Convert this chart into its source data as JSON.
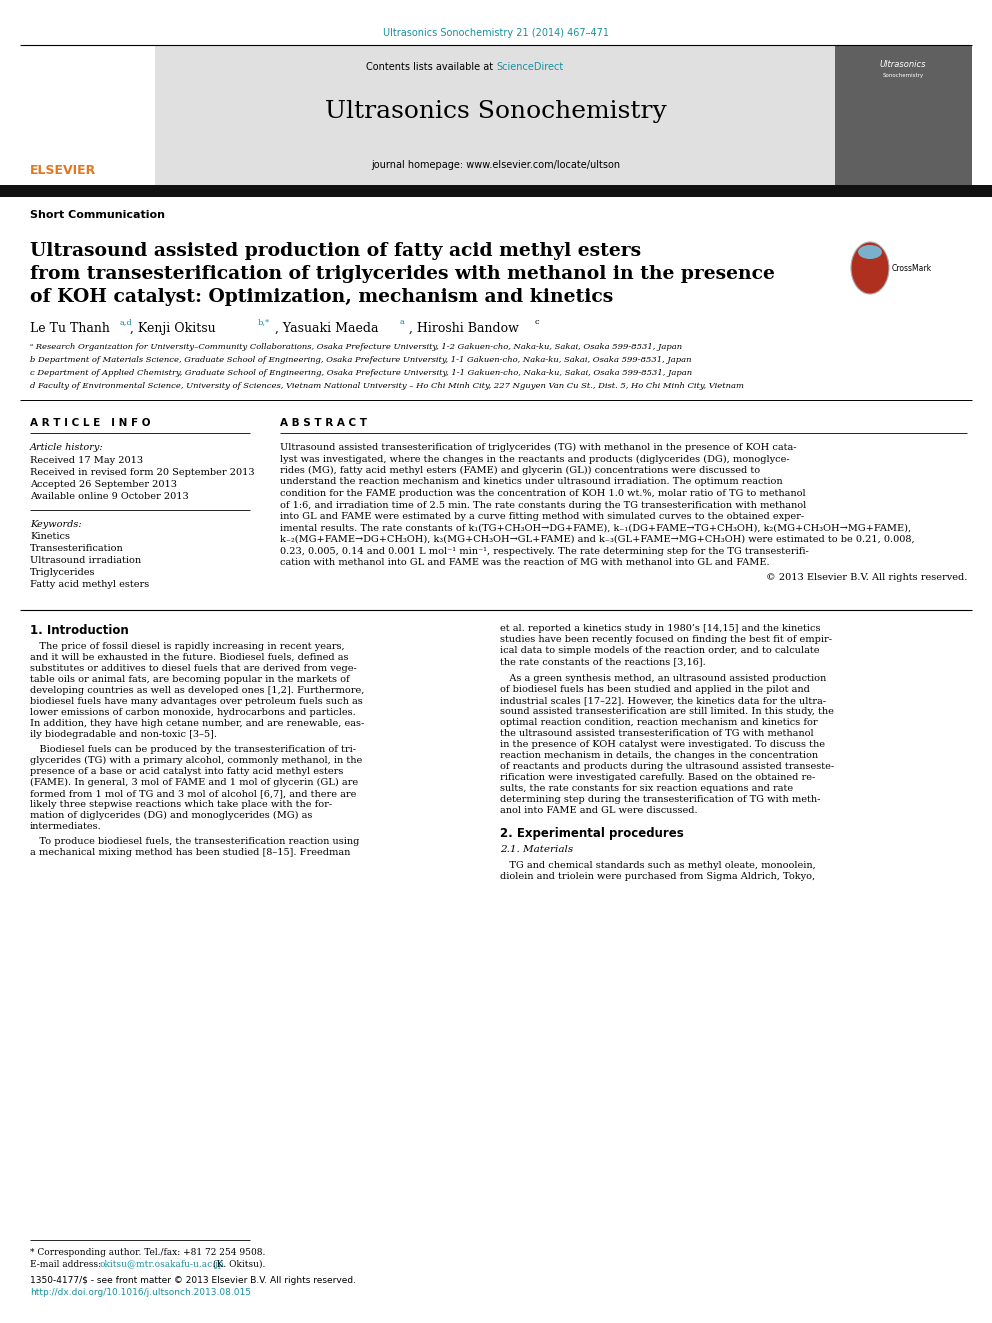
{
  "page_width": 9.92,
  "page_height": 13.23,
  "dpi": 100,
  "bg": "#ffffff",
  "teal": "#1a8fa0",
  "orange": "#e07820",
  "gray_header": "#e0e0e0",
  "dark_gray_logo": "#606060",
  "top_ref": "Ultrasonics Sonochemistry 21 (2014) 467–471",
  "contents_pre": "Contents lists available at ",
  "sciencedirect": "ScienceDirect",
  "journal_title": "Ultrasonics Sonochemistry",
  "journal_url": "journal homepage: www.elsevier.com/locate/ultson",
  "short_comm": "Short Communication",
  "title1": "Ultrasound assisted production of fatty acid methyl esters",
  "title2": "from transesterification of triglycerides with methanol in the presence",
  "title3": "of KOH catalyst: Optimization, mechanism and kinetics",
  "auth1": "Le Tu Thanh ",
  "auth1_sup": "a,d",
  "auth2": ", Kenji Okitsu ",
  "auth2_sup": "b,*",
  "auth3": ", Yasuaki Maeda ",
  "auth3_sup": "a",
  "auth4": ", Hiroshi Bandow ",
  "auth4_sup": "c",
  "aff_a": "ᵃ Research Organization for University–Community Collaborations, Osaka Prefecture University, 1-2 Gakuen-cho, Naka-ku, Sakai, Osaka 599-8531, Japan",
  "aff_b": "b Department of Materials Science, Graduate School of Engineering, Osaka Prefecture University, 1-1 Gakuen-cho, Naka-ku, Sakai, Osaka 599-8531, Japan",
  "aff_c": "c Department of Applied Chemistry, Graduate School of Engineering, Osaka Prefecture University, 1-1 Gakuen-cho, Naka-ku, Sakai, Osaka 599-8531, Japan",
  "aff_d": "d Faculty of Environmental Science, University of Sciences, Vietnam National University – Ho Chi Minh City, 227 Nguyen Van Cu St., Dist. 5, Ho Chi Minh City, Vietnam",
  "ai_header": "A R T I C L E   I N F O",
  "abs_header": "A B S T R A C T",
  "hist_label": "Article history:",
  "received": "Received 17 May 2013",
  "revised": "Received in revised form 20 September 2013",
  "accepted": "Accepted 26 September 2013",
  "available": "Available online 9 October 2013",
  "kw_label": "Keywords:",
  "kw1": "Kinetics",
  "kw2": "Transesterification",
  "kw3": "Ultrasound irradiation",
  "kw4": "Triglycerides",
  "kw5": "Fatty acid methyl esters",
  "abstract_lines": [
    "Ultrasound assisted transesterification of triglycerides (TG) with methanol in the presence of KOH cata-",
    "lyst was investigated, where the changes in the reactants and products (diglycerides (DG), monoglyce-",
    "rides (MG), fatty acid methyl esters (FAME) and glycerin (GL)) concentrations were discussed to",
    "understand the reaction mechanism and kinetics under ultrasound irradiation. The optimum reaction",
    "condition for the FAME production was the concentration of KOH 1.0 wt.%, molar ratio of TG to methanol",
    "of 1:6, and irradiation time of 2.5 min. The rate constants during the TG transesterification with methanol",
    "into GL and FAME were estimated by a curve fitting method with simulated curves to the obtained exper-",
    "imental results. The rate constants of k₁(TG+CH₃OH→DG+FAME), k₋₁(DG+FAME→TG+CH₃OH), k₂(MG+CH₃OH→MG+FAME),",
    "k₋₂(MG+FAME→DG+CH₃OH), k₃(MG+CH₃OH→GL+FAME) and k₋₃(GL+FAME→MG+CH₃OH) were estimated to be 0.21, 0.008,",
    "0.23, 0.005, 0.14 and 0.001 L mol⁻¹ min⁻¹, respectively. The rate determining step for the TG transesterifi-",
    "cation with methanol into GL and FAME was the reaction of MG with methanol into GL and FAME."
  ],
  "copyright": "© 2013 Elsevier B.V. All rights reserved.",
  "intro_head": "1. Introduction",
  "intro_p1": [
    "   The price of fossil diesel is rapidly increasing in recent years,",
    "and it will be exhausted in the future. Biodiesel fuels, defined as",
    "substitutes or additives to diesel fuels that are derived from vege-",
    "table oils or animal fats, are becoming popular in the markets of",
    "developing countries as well as developed ones [1,2]. Furthermore,",
    "biodiesel fuels have many advantages over petroleum fuels such as",
    "lower emissions of carbon monoxide, hydrocarbons and particles.",
    "In addition, they have high cetane number, and are renewable, eas-",
    "ily biodegradable and non-toxic [3–5]."
  ],
  "intro_p2": [
    "   Biodiesel fuels can be produced by the transesterification of tri-",
    "glycerides (TG) with a primary alcohol, commonly methanol, in the",
    "presence of a base or acid catalyst into fatty acid methyl esters",
    "(FAME). In general, 3 mol of FAME and 1 mol of glycerin (GL) are",
    "formed from 1 mol of TG and 3 mol of alcohol [6,7], and there are",
    "likely three stepwise reactions which take place with the for-",
    "mation of diglycerides (DG) and monoglycerides (MG) as",
    "intermediates."
  ],
  "intro_p3": [
    "   To produce biodiesel fuels, the transesterification reaction using",
    "a mechanical mixing method has been studied [8–15]. Freedman"
  ],
  "right_p1": [
    "et al. reported a kinetics study in 1980’s [14,15] and the kinetics",
    "studies have been recently focused on finding the best fit of empir-",
    "ical data to simple models of the reaction order, and to calculate",
    "the rate constants of the reactions [3,16]."
  ],
  "right_p2": [
    "   As a green synthesis method, an ultrasound assisted production",
    "of biodiesel fuels has been studied and applied in the pilot and",
    "industrial scales [17–22]. However, the kinetics data for the ultra-",
    "sound assisted transesterification are still limited. In this study, the",
    "optimal reaction condition, reaction mechanism and kinetics for",
    "the ultrasound assisted transesterification of TG with methanol",
    "in the presence of KOH catalyst were investigated. To discuss the",
    "reaction mechanism in details, the changes in the concentration",
    "of reactants and products during the ultrasound assisted transeste-",
    "rification were investigated carefully. Based on the obtained re-",
    "sults, the rate constants for six reaction equations and rate",
    "determining step during the transesterification of TG with meth-",
    "anol into FAME and GL were discussed."
  ],
  "exp_head": "2. Experimental procedures",
  "exp_sub": "2.1. Materials",
  "exp_p1": [
    "   TG and chemical standards such as methyl oleate, monoolein,",
    "diolein and triolein were purchased from Sigma Aldrich, Tokyo,"
  ],
  "fn_star": "* Corresponding author. Tel./fax: +81 72 254 9508.",
  "fn_email_pre": "E-mail address: ",
  "fn_email": "okitsu@mtr.osakafu-u.ac.jp",
  "fn_email_suf": " (K. Okitsu).",
  "issn": "1350-4177/$ - see front matter © 2013 Elsevier B.V. All rights reserved.",
  "doi": "http://dx.doi.org/10.1016/j.ultsonch.2013.08.015"
}
